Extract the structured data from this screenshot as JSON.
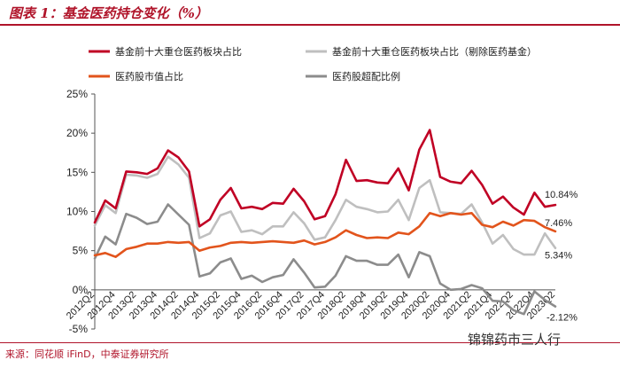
{
  "header": {
    "title": "图表 1：基金医药持仓变化（%）"
  },
  "footer": {
    "source": "来源：同花顺 iFinD，中泰证券研究所",
    "watermark": "锦锦药市三人行"
  },
  "colors": {
    "accent": "#b0142a",
    "series_top10": "#c00024",
    "series_top10_ex": "#bfbfbf",
    "series_market": "#e2541c",
    "series_overweight": "#8c8c8c"
  },
  "chart_data": {
    "type": "line",
    "x": [
      "2012Q2",
      "2012Q3",
      "2012Q4",
      "2013Q1",
      "2013Q2",
      "2013Q3",
      "2013Q4",
      "2014Q1",
      "2014Q2",
      "2014Q3",
      "2014Q4",
      "2015Q1",
      "2015Q2",
      "2015Q3",
      "2015Q4",
      "2016Q1",
      "2016Q2",
      "2016Q3",
      "2016Q4",
      "2017Q1",
      "2017Q2",
      "2017Q3",
      "2017Q4",
      "2018Q1",
      "2018Q2",
      "2018Q3",
      "2018Q4",
      "2019Q1",
      "2019Q2",
      "2019Q3",
      "2019Q4",
      "2020Q1",
      "2020Q2",
      "2020Q3",
      "2020Q4",
      "2021Q1",
      "2021Q2",
      "2021Q3",
      "2021Q4",
      "2022Q1",
      "2022Q2",
      "2022Q3",
      "2022Q4",
      "2023Q1",
      "2023Q2"
    ],
    "x_tick_labels": [
      "2012Q2",
      "2012Q4",
      "2013Q2",
      "2013Q4",
      "2014Q2",
      "2014Q4",
      "2015Q2",
      "2015Q4",
      "2016Q2",
      "2016Q4",
      "2017Q2",
      "2017Q4",
      "2018Q2",
      "2018Q4",
      "2019Q2",
      "2019Q4",
      "2020Q2",
      "2020Q4",
      "2021Q2",
      "2021Q4",
      "2022Q2",
      "2022Q4",
      "2023Q2"
    ],
    "ylim": [
      -5,
      25
    ],
    "y_ticks": [
      -5,
      0,
      5,
      10,
      15,
      20,
      25
    ],
    "y_tick_labels": [
      "-5%",
      "0%",
      "5%",
      "10%",
      "15%",
      "20%",
      "25%"
    ],
    "legend_placement": "top",
    "grid": false,
    "series": [
      {
        "name": "基金前十大重仓医药板块占比",
        "color": "#c00024",
        "values": [
          8.6,
          11.4,
          10.4,
          15.1,
          15.0,
          14.8,
          15.5,
          17.8,
          16.9,
          15.1,
          8.1,
          9.0,
          11.5,
          13.0,
          10.4,
          10.6,
          10.3,
          11.1,
          11.0,
          12.9,
          11.3,
          9.0,
          9.4,
          12.2,
          16.6,
          13.9,
          14.0,
          13.7,
          13.6,
          15.5,
          12.7,
          17.9,
          20.4,
          14.4,
          13.8,
          13.6,
          15.2,
          13.4,
          11.0,
          11.9,
          10.5,
          9.6,
          12.4,
          10.6,
          10.84
        ],
        "end_label": "10.84%"
      },
      {
        "name": "基金前十大重仓医药板块占比（剔除医药基金）",
        "color": "#bfbfbf",
        "values": [
          8.2,
          10.8,
          9.8,
          14.7,
          14.6,
          14.3,
          14.8,
          17.0,
          16.0,
          14.3,
          6.6,
          7.2,
          9.5,
          10.0,
          7.4,
          7.6,
          7.1,
          8.1,
          8.1,
          9.9,
          8.5,
          6.4,
          6.7,
          8.9,
          11.5,
          10.6,
          10.3,
          9.9,
          10.0,
          11.5,
          8.9,
          13.0,
          14.0,
          9.9,
          9.8,
          9.7,
          10.9,
          8.6,
          5.9,
          7.0,
          5.2,
          4.5,
          4.5,
          7.2,
          5.34
        ],
        "end_label": "5.34%"
      },
      {
        "name": "医药股市值占比",
        "color": "#e2541c",
        "values": [
          4.4,
          4.7,
          4.2,
          5.2,
          5.5,
          5.9,
          5.9,
          6.1,
          6.0,
          6.1,
          5.0,
          5.4,
          5.6,
          6.0,
          6.1,
          6.0,
          6.1,
          6.2,
          6.1,
          6.0,
          6.3,
          5.8,
          6.1,
          6.7,
          7.6,
          7.0,
          6.6,
          6.7,
          6.6,
          7.3,
          7.1,
          8.1,
          9.8,
          9.4,
          9.8,
          9.6,
          9.8,
          8.3,
          8.0,
          8.7,
          8.2,
          8.9,
          8.8,
          8.0,
          7.46
        ],
        "end_label": "7.46%"
      },
      {
        "name": "医药股超配比例",
        "color": "#8c8c8c",
        "values": [
          4.0,
          6.8,
          5.8,
          9.7,
          9.2,
          8.4,
          8.7,
          10.9,
          9.6,
          8.3,
          1.7,
          2.1,
          3.5,
          4.0,
          1.4,
          1.8,
          1.0,
          1.6,
          1.9,
          3.9,
          2.2,
          0.3,
          0.4,
          1.8,
          4.3,
          3.7,
          3.7,
          3.2,
          3.2,
          4.5,
          1.6,
          4.8,
          4.3,
          0.8,
          0.0,
          0.1,
          0.6,
          0.2,
          -1.4,
          -1.5,
          -2.6,
          -3.1,
          -0.2,
          -1.3,
          -2.12
        ],
        "end_label": "-2.12%"
      }
    ]
  }
}
